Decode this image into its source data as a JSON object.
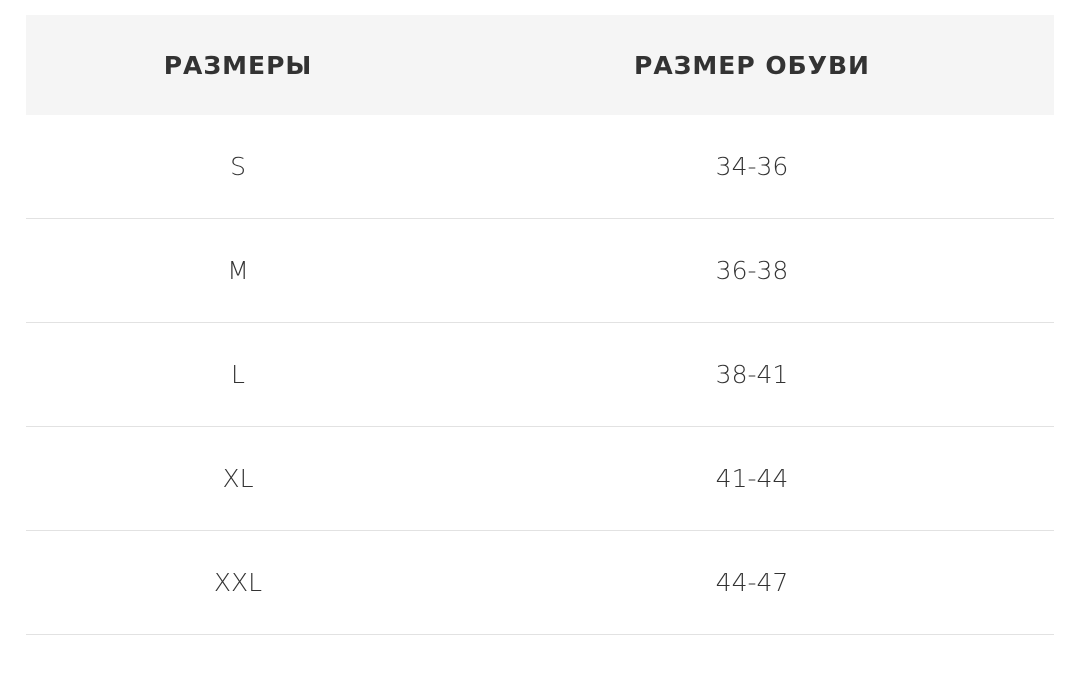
{
  "headers": [
    "РАЗМЕРЫ",
    "РАЗМЕР ОБУВИ"
  ],
  "rows": [
    [
      "S",
      "34-36"
    ],
    [
      "M",
      "36-38"
    ],
    [
      "L",
      "38-41"
    ],
    [
      "XL",
      "41-44"
    ],
    [
      "XXL",
      "44-47"
    ]
  ]
}
